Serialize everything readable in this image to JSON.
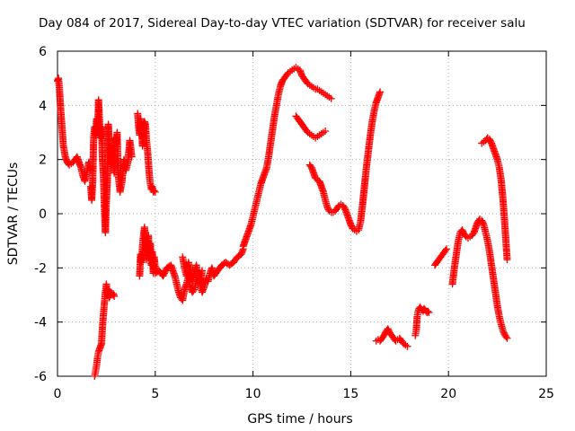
{
  "chart_data": {
    "type": "scatter",
    "title": "Day 084 of 2017, Sidereal Day-to-day VTEC variation (SDTVAR) for receiver salu",
    "xlabel": "GPS time / hours",
    "ylabel": "SDTVAR / TECUs",
    "xlim": [
      0,
      25
    ],
    "ylim": [
      -6,
      6
    ],
    "xticks": [
      "0",
      "5",
      "10",
      "15",
      "20",
      "25"
    ],
    "yticks": [
      "-6",
      "-4",
      "-2",
      "0",
      "2",
      "4",
      "6"
    ],
    "grid": true,
    "marker": "+",
    "series": [
      {
        "name": "SDTVAR",
        "color": "#ff0000",
        "segments": [
          {
            "x": [
              0.0,
              0.05,
              0.1,
              0.15,
              0.2,
              0.25,
              0.3,
              0.4,
              0.5,
              0.6,
              0.7,
              0.8,
              0.9,
              1.0,
              1.1,
              1.2,
              1.3,
              1.4,
              1.5,
              1.6,
              1.7
            ],
            "y": [
              4.9,
              5.0,
              4.6,
              4.0,
              3.5,
              3.0,
              2.5,
              2.1,
              1.9,
              1.8,
              1.85,
              1.9,
              2.0,
              2.1,
              1.9,
              1.7,
              1.4,
              1.2,
              1.5,
              1.9,
              1.6
            ]
          },
          {
            "x": [
              1.7,
              1.75,
              1.8,
              1.85,
              1.9,
              1.95,
              2.0,
              2.05,
              2.1,
              2.15,
              2.2,
              2.25,
              2.3,
              2.35,
              2.4,
              2.45,
              2.5,
              2.55,
              2.6,
              2.65,
              2.7,
              2.75,
              2.8,
              2.85,
              2.9,
              2.95,
              3.0,
              3.05,
              3.1,
              3.2,
              3.3,
              3.4,
              3.5,
              3.6,
              3.7,
              3.8
            ],
            "y": [
              1.0,
              0.5,
              1.2,
              2.8,
              3.2,
              2.9,
              3.5,
              3.0,
              4.2,
              3.4,
              2.8,
              3.2,
              2.0,
              1.4,
              0.2,
              -0.7,
              0.5,
              1.2,
              3.3,
              2.6,
              2.2,
              1.8,
              2.5,
              2.0,
              1.5,
              2.8,
              2.6,
              3.0,
              1.5,
              0.8,
              1.2,
              2.0,
              1.6,
              1.9,
              2.7,
              2.1
            ]
          },
          {
            "x": [
              1.9,
              1.95,
              2.0,
              2.05,
              2.1,
              2.15,
              2.2,
              2.25,
              2.3,
              2.35,
              2.4,
              2.45,
              2.5,
              2.55,
              2.6,
              2.65,
              2.7,
              2.75,
              2.8,
              2.85,
              2.9
            ],
            "y": [
              -6.0,
              -5.8,
              -5.6,
              -5.3,
              -5.1,
              -5.0,
              -4.9,
              -4.8,
              -4.2,
              -3.7,
              -3.3,
              -2.9,
              -2.6,
              -3.0,
              -2.8,
              -3.1,
              -3.0,
              -2.9,
              -3.0,
              -2.95,
              -3.05
            ]
          },
          {
            "x": [
              4.1,
              4.15,
              4.2,
              4.25,
              4.3,
              4.35,
              4.4,
              4.45,
              4.5,
              4.55,
              4.6,
              4.65,
              4.7,
              4.75,
              4.8,
              4.85,
              4.9,
              4.95,
              5.0
            ],
            "y": [
              3.7,
              3.2,
              2.9,
              3.5,
              3.1,
              2.5,
              3.0,
              3.4,
              3.3,
              2.7,
              2.4,
              1.9,
              1.4,
              1.1,
              0.9,
              1.0,
              0.8,
              0.85,
              0.8
            ]
          },
          {
            "x": [
              4.2,
              4.25,
              4.3,
              4.35,
              4.4,
              4.45,
              4.5,
              4.55,
              4.6,
              4.65,
              4.7,
              4.75,
              4.8,
              4.85,
              4.9,
              4.95,
              5.0
            ],
            "y": [
              -2.3,
              -1.5,
              -1.8,
              -1.2,
              -0.8,
              -0.5,
              -1.0,
              -1.7,
              -1.3,
              -0.8,
              -1.5,
              -1.1,
              -1.9,
              -1.4,
              -2.2,
              -1.6,
              -2.0
            ]
          },
          {
            "x": [
              5.0,
              5.2,
              5.4,
              5.6,
              5.8,
              6.0,
              6.1,
              6.2,
              6.3,
              6.4,
              6.5,
              6.6,
              6.7,
              6.8,
              6.9,
              7.0,
              7.1,
              7.2,
              7.3,
              7.4,
              7.5,
              7.6,
              7.7,
              7.8,
              7.9,
              8.0,
              8.2,
              8.4,
              8.6,
              8.8,
              9.0,
              9.2,
              9.4,
              9.5
            ],
            "y": [
              -2.2,
              -2.1,
              -2.3,
              -2.0,
              -1.9,
              -2.3,
              -2.6,
              -2.9,
              -3.1,
              -3.2,
              -2.8,
              -2.6,
              -2.3,
              -2.7,
              -2.9,
              -2.8,
              -2.5,
              -2.2,
              -2.6,
              -2.9,
              -2.7,
              -2.4,
              -2.5,
              -2.2,
              -2.0,
              -2.3,
              -2.1,
              -1.9,
              -1.8,
              -1.9,
              -1.8,
              -1.6,
              -1.5,
              -1.3
            ]
          },
          {
            "x": [
              6.4,
              6.5,
              6.6,
              6.7,
              6.8,
              6.9,
              7.0,
              7.1,
              7.2,
              7.3,
              7.4
            ],
            "y": [
              -1.6,
              -2.0,
              -2.3,
              -1.8,
              -2.1,
              -2.5,
              -2.2,
              -1.9,
              -2.3,
              -2.6,
              -2.1
            ]
          },
          {
            "x": [
              9.5,
              9.6,
              9.7,
              9.8,
              9.9,
              10.0,
              10.1,
              10.2,
              10.3,
              10.4,
              10.5,
              10.6,
              10.7,
              10.8,
              10.9,
              11.0,
              11.1,
              11.2,
              11.3,
              11.4,
              11.5,
              11.6,
              11.7,
              11.8,
              11.9,
              12.0,
              12.1,
              12.2,
              12.3,
              12.4,
              12.5,
              12.6,
              12.7,
              12.8,
              12.9,
              13.0,
              13.1,
              13.2,
              13.3,
              13.4,
              13.5,
              13.6,
              13.7,
              13.8,
              13.9,
              14.0
            ],
            "y": [
              -1.2,
              -1.0,
              -0.8,
              -0.6,
              -0.4,
              -0.1,
              0.2,
              0.5,
              0.8,
              1.1,
              1.3,
              1.5,
              1.7,
              2.1,
              2.6,
              3.1,
              3.6,
              4.0,
              4.4,
              4.7,
              4.9,
              5.0,
              5.1,
              5.2,
              5.25,
              5.3,
              5.35,
              5.4,
              5.35,
              5.3,
              5.1,
              5.0,
              4.9,
              4.8,
              4.75,
              4.7,
              4.65,
              4.6,
              4.6,
              4.55,
              4.5,
              4.45,
              4.4,
              4.35,
              4.3,
              4.25
            ]
          },
          {
            "x": [
              12.2,
              12.3,
              12.4,
              12.5,
              12.6,
              12.7,
              12.8,
              12.9,
              13.0,
              13.1,
              13.2,
              13.3,
              13.4,
              13.5,
              13.6,
              13.7
            ],
            "y": [
              3.6,
              3.5,
              3.4,
              3.3,
              3.2,
              3.1,
              3.0,
              2.95,
              2.9,
              2.85,
              2.8,
              2.85,
              2.9,
              2.95,
              3.0,
              3.05
            ]
          },
          {
            "x": [
              12.9,
              13.0,
              13.1,
              13.2,
              13.3,
              13.4,
              13.5,
              13.6,
              13.7,
              13.8,
              13.9,
              14.0,
              14.1,
              14.2,
              14.3,
              14.4,
              14.5,
              14.6,
              14.7,
              14.8,
              14.9,
              15.0,
              15.1,
              15.2,
              15.3,
              15.4,
              15.5,
              15.6,
              15.7,
              15.8,
              15.9,
              16.0,
              16.1,
              16.2,
              16.3,
              16.4,
              16.5
            ],
            "y": [
              1.8,
              1.7,
              1.5,
              1.3,
              1.25,
              1.2,
              1.0,
              0.8,
              0.5,
              0.25,
              0.1,
              0.05,
              0.05,
              0.1,
              0.2,
              0.3,
              0.35,
              0.3,
              0.2,
              0.0,
              -0.2,
              -0.4,
              -0.55,
              -0.6,
              -0.65,
              -0.6,
              -0.3,
              0.3,
              1.0,
              1.7,
              2.3,
              2.9,
              3.4,
              3.8,
              4.1,
              4.3,
              4.5
            ]
          },
          {
            "x": [
              16.3,
              16.4,
              16.5,
              16.6,
              16.7,
              16.8,
              16.9,
              17.0,
              17.1,
              17.2,
              17.3,
              17.4,
              17.5,
              17.6,
              17.7,
              17.8,
              17.9
            ],
            "y": [
              -4.7,
              -4.65,
              -4.7,
              -4.6,
              -4.5,
              -4.35,
              -4.25,
              -4.4,
              -4.5,
              -4.6,
              -4.7,
              -4.65,
              -4.6,
              -4.7,
              -4.8,
              -4.85,
              -4.9
            ]
          },
          {
            "x": [
              18.3,
              18.35,
              18.4,
              18.45,
              18.5,
              18.55,
              18.6,
              18.65,
              18.7,
              18.75,
              18.8,
              18.85,
              18.9,
              18.95,
              19.0
            ],
            "y": [
              -4.5,
              -4.3,
              -3.8,
              -3.6,
              -3.5,
              -3.45,
              -3.5,
              -3.55,
              -3.6,
              -3.5,
              -3.55,
              -3.6,
              -3.65,
              -3.6,
              -3.65
            ]
          },
          {
            "x": [
              19.3,
              19.4,
              19.5,
              19.6,
              19.7,
              19.8,
              19.9
            ],
            "y": [
              -1.9,
              -1.8,
              -1.7,
              -1.6,
              -1.5,
              -1.4,
              -1.3
            ]
          },
          {
            "x": [
              20.2,
              20.3,
              20.4,
              20.5,
              20.6,
              20.7,
              20.8,
              20.9,
              21.0,
              21.1,
              21.2,
              21.3,
              21.4,
              21.5,
              21.6,
              21.7,
              21.8,
              21.9,
              22.0,
              22.1,
              22.2,
              22.3,
              22.4,
              22.5,
              22.6,
              22.7,
              22.8,
              22.9,
              23.0
            ],
            "y": [
              -2.6,
              -2.0,
              -1.5,
              -1.0,
              -0.7,
              -0.6,
              -0.75,
              -0.85,
              -0.9,
              -0.85,
              -0.8,
              -0.7,
              -0.5,
              -0.3,
              -0.2,
              -0.25,
              -0.4,
              -0.7,
              -1.0,
              -1.4,
              -1.9,
              -2.4,
              -2.9,
              -3.4,
              -3.8,
              -4.1,
              -4.35,
              -4.5,
              -4.6
            ]
          },
          {
            "x": [
              21.7,
              21.8,
              21.9,
              22.0,
              22.1,
              22.2,
              22.3,
              22.4,
              22.5,
              22.6,
              22.7,
              22.8,
              22.9,
              23.0
            ],
            "y": [
              2.6,
              2.65,
              2.7,
              2.8,
              2.75,
              2.6,
              2.4,
              2.2,
              2.0,
              1.7,
              1.2,
              0.4,
              -0.6,
              -1.7
            ]
          }
        ]
      }
    ]
  }
}
